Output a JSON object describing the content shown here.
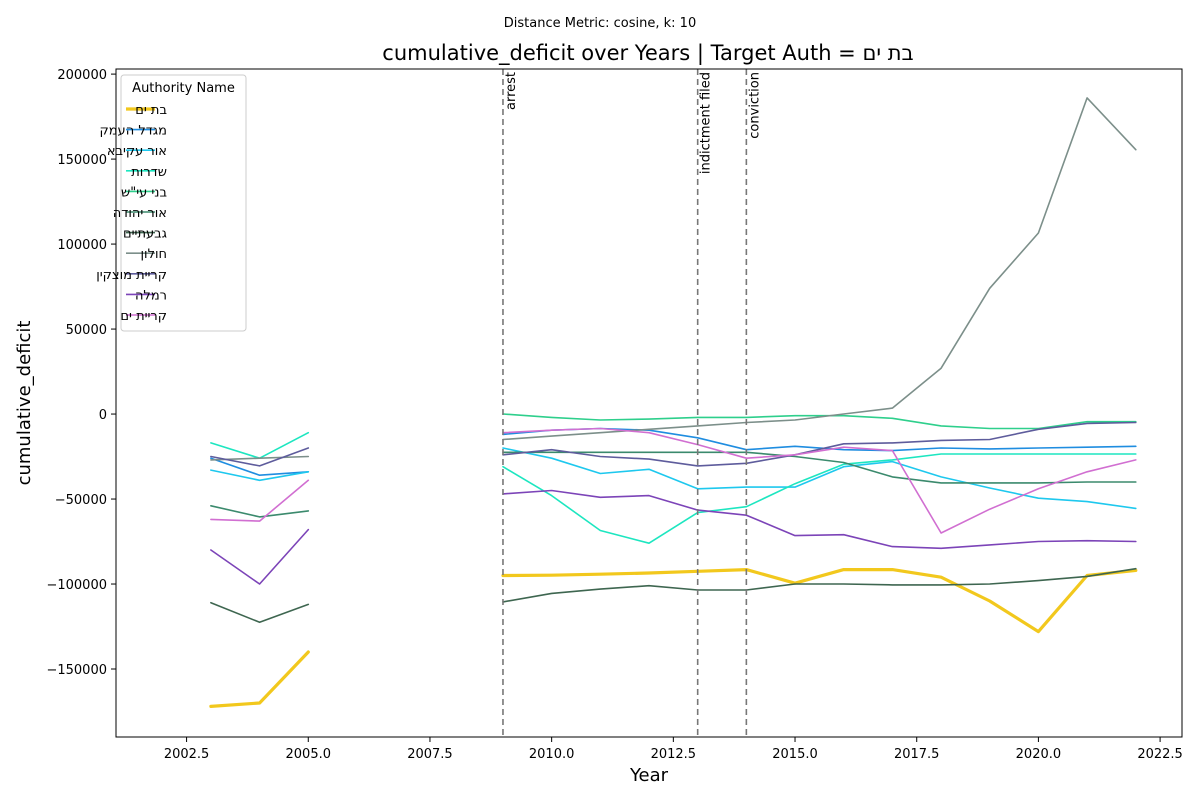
{
  "chart_data": {
    "type": "line",
    "suptitle": "Distance Metric: cosine, k: 10",
    "title": "cumulative_deficit over Years | Target Auth = בת ים",
    "xlabel": "Year",
    "ylabel": "cumulative_deficit",
    "xlim": [
      2001.05,
      2022.95
    ],
    "ylim": [
      -190000,
      203000
    ],
    "xticks": [
      2002.5,
      2005.0,
      2007.5,
      2010.0,
      2012.5,
      2015.0,
      2017.5,
      2020.0,
      2022.5
    ],
    "xtick_labels": [
      "2002.5",
      "2005.0",
      "2007.5",
      "2010.0",
      "2012.5",
      "2015.0",
      "2017.5",
      "2020.0",
      "2022.5"
    ],
    "yticks": [
      -150000,
      -100000,
      -50000,
      0,
      50000,
      100000,
      150000,
      200000
    ],
    "ytick_labels": [
      "−150000",
      "−100000",
      "−50000",
      "0",
      "50000",
      "100000",
      "150000",
      "200000"
    ],
    "grid": false,
    "legend_title": "Authority Name",
    "legend_position": "upper-left",
    "events": [
      {
        "x": 2009,
        "label": "arrest"
      },
      {
        "x": 2013,
        "label": "indictment filed"
      },
      {
        "x": 2014,
        "label": "conviction"
      }
    ],
    "series": [
      {
        "name": "בת ים",
        "color": "#f2c81d",
        "width": 3.2,
        "segments": [
          [
            [
              2003,
              -172000
            ],
            [
              2004,
              -170000
            ],
            [
              2005,
              -140000
            ]
          ],
          [
            [
              2009,
              -95000
            ],
            [
              2010,
              -94800
            ],
            [
              2011,
              -94200
            ],
            [
              2012,
              -93500
            ],
            [
              2013,
              -92500
            ],
            [
              2014,
              -91500
            ],
            [
              2015,
              -99500
            ],
            [
              2016,
              -91500
            ],
            [
              2017,
              -91500
            ],
            [
              2018,
              -96000
            ],
            [
              2019,
              -110000
            ],
            [
              2020,
              -128000
            ],
            [
              2021,
              -95000
            ],
            [
              2022,
              -92000
            ]
          ]
        ]
      },
      {
        "name": "מגדל העמק",
        "color": "#1f8de0",
        "width": 1.6,
        "segments": [
          [
            [
              2003,
              -26000
            ],
            [
              2004,
              -36000
            ],
            [
              2005,
              -34000
            ]
          ],
          [
            [
              2009,
              -12000
            ],
            [
              2010,
              -9500
            ],
            [
              2011,
              -8500
            ],
            [
              2012,
              -9500
            ],
            [
              2013,
              -14000
            ],
            [
              2014,
              -21000
            ],
            [
              2015,
              -19000
            ],
            [
              2016,
              -21000
            ],
            [
              2017,
              -21500
            ],
            [
              2018,
              -20000
            ],
            [
              2019,
              -20500
            ],
            [
              2020,
              -20000
            ],
            [
              2021,
              -19500
            ],
            [
              2022,
              -19000
            ]
          ]
        ]
      },
      {
        "name": "אור עקיבא",
        "color": "#1ec8ee",
        "width": 1.6,
        "segments": [
          [
            [
              2003,
              -33000
            ],
            [
              2004,
              -39000
            ],
            [
              2005,
              -34000
            ]
          ],
          [
            [
              2009,
              -20000
            ],
            [
              2010,
              -26000
            ],
            [
              2011,
              -35000
            ],
            [
              2012,
              -32500
            ],
            [
              2013,
              -44000
            ],
            [
              2014,
              -43000
            ],
            [
              2015,
              -43000
            ],
            [
              2016,
              -31000
            ],
            [
              2017,
              -28000
            ],
            [
              2018,
              -37000
            ],
            [
              2019,
              -43500
            ],
            [
              2020,
              -49500
            ],
            [
              2021,
              -51500
            ],
            [
              2022,
              -55500
            ]
          ]
        ]
      },
      {
        "name": "שדרות",
        "color": "#1de6c0",
        "width": 1.6,
        "segments": [
          [
            [
              2003,
              -17000
            ],
            [
              2004,
              -26000
            ],
            [
              2005,
              -11000
            ]
          ],
          [
            [
              2009,
              -31000
            ],
            [
              2010,
              -48000
            ],
            [
              2011,
              -68500
            ],
            [
              2012,
              -76000
            ],
            [
              2013,
              -58000
            ],
            [
              2014,
              -54500
            ],
            [
              2015,
              -41000
            ],
            [
              2016,
              -29500
            ],
            [
              2017,
              -27000
            ],
            [
              2018,
              -23500
            ],
            [
              2019,
              -23500
            ],
            [
              2020,
              -23500
            ],
            [
              2021,
              -23500
            ],
            [
              2022,
              -23500
            ]
          ]
        ]
      },
      {
        "name": "בני עי\"ש",
        "color": "#2ecf8c",
        "width": 1.6,
        "segments": [
          [
            [
              2009,
              0
            ],
            [
              2010,
              -2000
            ],
            [
              2011,
              -3500
            ],
            [
              2012,
              -3000
            ],
            [
              2013,
              -2000
            ],
            [
              2014,
              -2000
            ],
            [
              2015,
              -1000
            ],
            [
              2016,
              -1000
            ],
            [
              2017,
              -2500
            ],
            [
              2018,
              -7000
            ],
            [
              2019,
              -8500
            ],
            [
              2020,
              -8500
            ],
            [
              2021,
              -4500
            ],
            [
              2022,
              -4500
            ]
          ]
        ]
      },
      {
        "name": "אור יהודה",
        "color": "#3b8a6d",
        "width": 1.6,
        "segments": [
          [
            [
              2003,
              -54000
            ],
            [
              2004,
              -60500
            ],
            [
              2005,
              -57000
            ]
          ],
          [
            [
              2009,
              -22500
            ],
            [
              2010,
              -22500
            ],
            [
              2011,
              -22500
            ],
            [
              2012,
              -22500
            ],
            [
              2013,
              -22500
            ],
            [
              2014,
              -22500
            ],
            [
              2015,
              -25000
            ],
            [
              2016,
              -28500
            ],
            [
              2017,
              -37000
            ],
            [
              2018,
              -40500
            ],
            [
              2019,
              -40500
            ],
            [
              2020,
              -40500
            ],
            [
              2021,
              -40000
            ],
            [
              2022,
              -40000
            ]
          ]
        ]
      },
      {
        "name": "גבעתיים",
        "color": "#3e6650",
        "width": 1.6,
        "segments": [
          [
            [
              2003,
              -111000
            ],
            [
              2004,
              -122500
            ],
            [
              2005,
              -112000
            ]
          ],
          [
            [
              2009,
              -110500
            ],
            [
              2010,
              -105500
            ],
            [
              2011,
              -103000
            ],
            [
              2012,
              -101000
            ],
            [
              2013,
              -103500
            ],
            [
              2014,
              -103500
            ],
            [
              2015,
              -100000
            ],
            [
              2016,
              -100000
            ],
            [
              2017,
              -100500
            ],
            [
              2018,
              -100500
            ],
            [
              2019,
              -100000
            ],
            [
              2020,
              -98000
            ],
            [
              2021,
              -95500
            ],
            [
              2022,
              -91000
            ]
          ]
        ]
      },
      {
        "name": "חולון",
        "color": "#7c8f8a",
        "width": 1.6,
        "segments": [
          [
            [
              2003,
              -27000
            ],
            [
              2004,
              -26000
            ],
            [
              2005,
              -25000
            ]
          ],
          [
            [
              2009,
              -15000
            ],
            [
              2010,
              -13000
            ],
            [
              2011,
              -11000
            ],
            [
              2012,
              -9000
            ],
            [
              2013,
              -7000
            ],
            [
              2014,
              -5000
            ],
            [
              2015,
              -3500
            ],
            [
              2016,
              0
            ],
            [
              2017,
              3500
            ],
            [
              2018,
              27000
            ],
            [
              2019,
              74000
            ],
            [
              2020,
              106500
            ],
            [
              2021,
              186000
            ],
            [
              2022,
              155500
            ]
          ]
        ]
      },
      {
        "name": "קריית מוצקין",
        "color": "#5e5c9c",
        "width": 1.6,
        "segments": [
          [
            [
              2003,
              -25000
            ],
            [
              2004,
              -30500
            ],
            [
              2005,
              -20000
            ]
          ],
          [
            [
              2009,
              -24000
            ],
            [
              2010,
              -21000
            ],
            [
              2011,
              -25000
            ],
            [
              2012,
              -26500
            ],
            [
              2013,
              -30500
            ],
            [
              2014,
              -29000
            ],
            [
              2015,
              -24000
            ],
            [
              2016,
              -17500
            ],
            [
              2017,
              -17000
            ],
            [
              2018,
              -15500
            ],
            [
              2019,
              -15000
            ],
            [
              2020,
              -9000
            ],
            [
              2021,
              -5500
            ],
            [
              2022,
              -5000
            ]
          ]
        ]
      },
      {
        "name": "רמלה",
        "color": "#7c44b8",
        "width": 1.6,
        "segments": [
          [
            [
              2003,
              -80000
            ],
            [
              2004,
              -100000
            ],
            [
              2005,
              -68000
            ]
          ],
          [
            [
              2009,
              -47000
            ],
            [
              2010,
              -45000
            ],
            [
              2011,
              -49000
            ],
            [
              2012,
              -48000
            ],
            [
              2013,
              -56500
            ],
            [
              2014,
              -59500
            ],
            [
              2015,
              -71500
            ],
            [
              2016,
              -71000
            ],
            [
              2017,
              -78000
            ],
            [
              2018,
              -79000
            ],
            [
              2019,
              -77000
            ],
            [
              2020,
              -75000
            ],
            [
              2021,
              -74500
            ],
            [
              2022,
              -75000
            ]
          ]
        ]
      },
      {
        "name": "קריית ים",
        "color": "#d16fd1",
        "width": 1.6,
        "segments": [
          [
            [
              2003,
              -62000
            ],
            [
              2004,
              -63000
            ],
            [
              2005,
              -39000
            ]
          ],
          [
            [
              2009,
              -11000
            ],
            [
              2010,
              -9500
            ],
            [
              2011,
              -8500
            ],
            [
              2012,
              -11000
            ],
            [
              2013,
              -18000
            ],
            [
              2014,
              -26000
            ],
            [
              2015,
              -24000
            ],
            [
              2016,
              -19500
            ],
            [
              2017,
              -21500
            ],
            [
              2018,
              -70000
            ],
            [
              2019,
              -56000
            ],
            [
              2020,
              -44000
            ],
            [
              2021,
              -34000
            ],
            [
              2022,
              -27000
            ]
          ]
        ]
      }
    ]
  }
}
